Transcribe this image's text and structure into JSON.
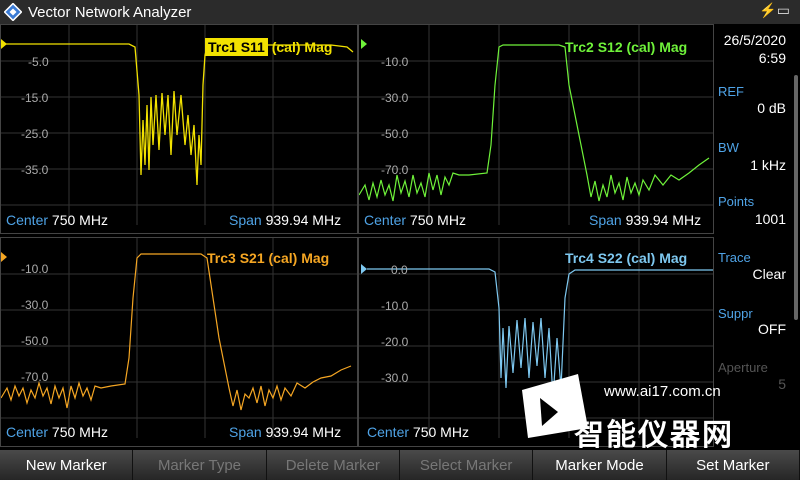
{
  "app": {
    "title": "Vector Network Analyzer"
  },
  "status": {
    "date": "26/5/2020",
    "time": "6:59",
    "battery_icon": "battery-charging-icon"
  },
  "plots": [
    {
      "trace": "Trc1",
      "param": "S11",
      "label_rest": "(cal) Mag",
      "color": "#f2e200",
      "ylabels": [
        "-5.0",
        "-15.0",
        "-25.0",
        "-35.0"
      ],
      "center_key": "Center",
      "center_val": "750 MHz",
      "span_key": "Span",
      "span_val": "939.94 MHz"
    },
    {
      "trace": "Trc2",
      "param": "S12",
      "label_rest": "(cal) Mag",
      "color": "#6ff23a",
      "ylabels": [
        "-10.0",
        "-30.0",
        "-50.0",
        "-70.0"
      ],
      "center_key": "Center",
      "center_val": "750 MHz",
      "span_key": "Span",
      "span_val": "939.94 MHz"
    },
    {
      "trace": "Trc3",
      "param": "S21",
      "label_rest": "(cal) Mag",
      "color": "#f5a623",
      "ylabels": [
        "-10.0",
        "-30.0",
        "-50.0",
        "-70.0"
      ],
      "center_key": "Center",
      "center_val": "750 MHz",
      "span_key": "Span",
      "span_val": "939.94 MHz"
    },
    {
      "trace": "Trc4",
      "param": "S22",
      "label_rest": "(cal) Mag",
      "color": "#7ec8f0",
      "ylabels": [
        "0.0",
        "-10.0",
        "-20.0",
        "-30.0"
      ],
      "center_key": "Center",
      "center_val": "750 MHz",
      "span_key": "",
      "span_val": ""
    }
  ],
  "side": {
    "ref_key": "REF",
    "ref_val": "0 dB",
    "bw_key": "BW",
    "bw_val": "1 kHz",
    "points_key": "Points",
    "points_val": "1001",
    "trace_key": "Trace",
    "trace_val": "Clear",
    "suppr_key": "Suppr",
    "suppr_val": "OFF",
    "aperture_key": "Aperture",
    "aperture_val": "5"
  },
  "softkeys": [
    "New Marker",
    "Marker Type",
    "Delete Marker",
    "Select Marker",
    "Marker Mode",
    "Set Marker"
  ],
  "softkeys_enabled": [
    true,
    false,
    false,
    false,
    true,
    true
  ],
  "watermark": {
    "url": "www.ai17.com.cn",
    "cn": "智能仪器网"
  }
}
